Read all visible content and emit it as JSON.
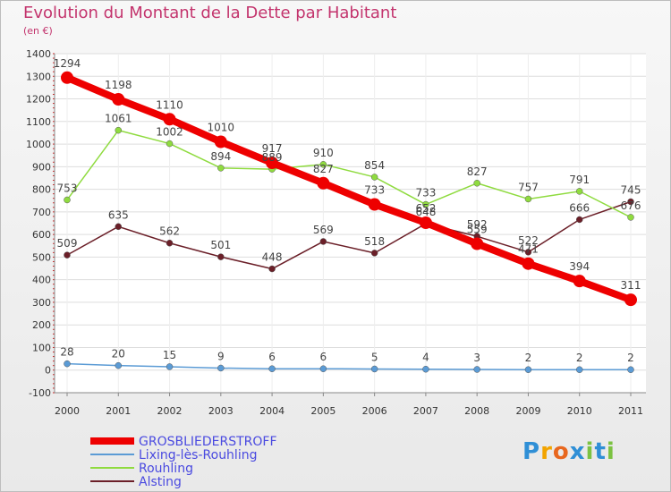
{
  "chart_data": {
    "type": "line",
    "title": "Evolution du Montant de la Dette par Habitant",
    "subtitle": "(en €)",
    "x": [
      "2000",
      "2001",
      "2002",
      "2003",
      "2004",
      "2005",
      "2006",
      "2007",
      "2008",
      "2009",
      "2010",
      "2011"
    ],
    "ylim": [
      -100,
      1400
    ],
    "yticks": [
      -100,
      0,
      100,
      200,
      300,
      400,
      500,
      600,
      700,
      800,
      900,
      1000,
      1100,
      1200,
      1300,
      1400
    ],
    "grid": "horizontal",
    "legend_position": "bottom-left",
    "series": [
      {
        "name": "Alsting",
        "color": "#6b1f28",
        "values": [
          509,
          635,
          562,
          501,
          448,
          569,
          518,
          648,
          592,
          522,
          666,
          745
        ]
      },
      {
        "name": "Rouhling",
        "color": "#8fdb3f",
        "values": [
          753,
          1061,
          1002,
          894,
          889,
          910,
          854,
          733,
          827,
          757,
          791,
          676
        ]
      },
      {
        "name": "Lixing-lès-Rouhling",
        "color": "#5b9bd5",
        "values": [
          28,
          20,
          15,
          9,
          6,
          6,
          5,
          4,
          3,
          2,
          2,
          2
        ]
      },
      {
        "name": "GROSBLIEDERSTROFF",
        "color": "#ee0000",
        "values": [
          1294,
          1198,
          1110,
          1010,
          917,
          827,
          733,
          652,
          559,
          471,
          394,
          311
        ]
      }
    ]
  },
  "logo": {
    "text": "Proxiti",
    "letters": [
      "P",
      "r",
      "o",
      "x",
      "i",
      "t",
      "i"
    ],
    "colors": [
      "#2f8fd6",
      "#f2a400",
      "#e8671e",
      "#2f8fd6",
      "#7cc242",
      "#2f8fd6",
      "#7cc242"
    ]
  }
}
